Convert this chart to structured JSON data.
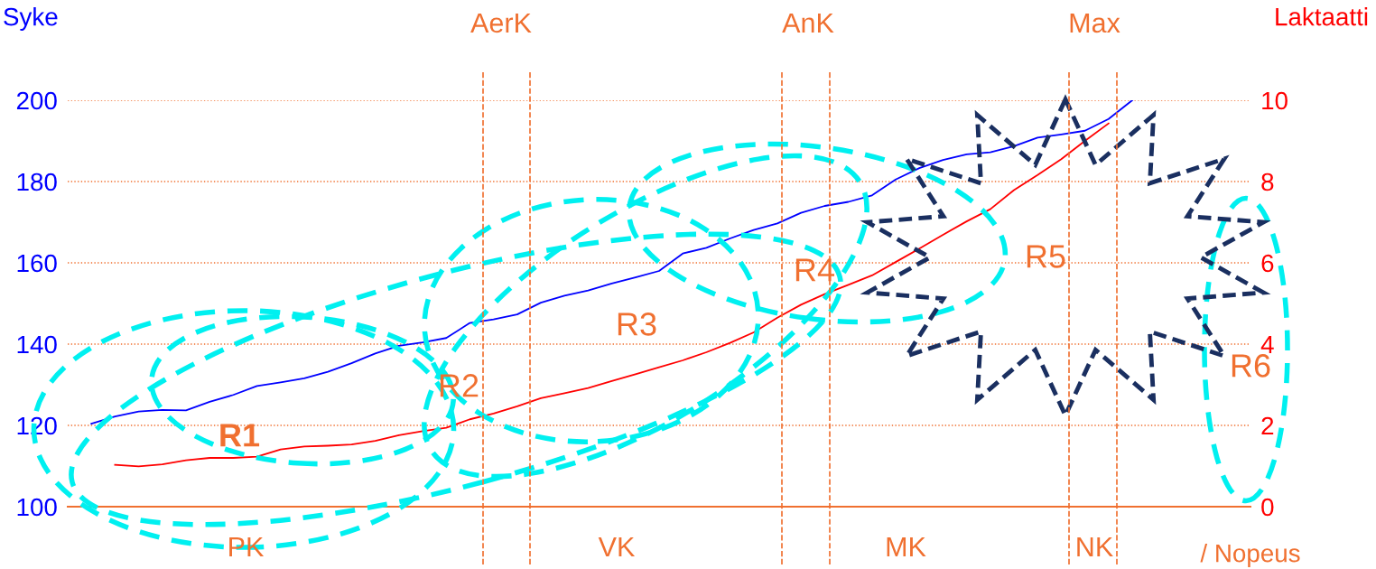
{
  "chart_data": {
    "type": "line",
    "ylabel": "Syke",
    "y2label": "Laktaatti",
    "xlabel": "/ Nopeus",
    "categories": [
      null,
      null,
      null,
      null,
      null,
      null,
      null,
      null,
      null,
      null,
      null,
      null,
      null,
      null,
      null,
      null,
      null,
      null,
      null,
      null,
      null,
      null,
      null,
      null,
      null,
      null,
      null,
      null,
      null,
      null,
      null,
      null,
      null,
      null,
      null,
      null,
      null,
      null,
      null,
      null,
      null,
      null,
      null,
      null,
      null,
      null,
      null,
      null,
      null,
      null,
      null
    ],
    "ylim": [
      100,
      200
    ],
    "yticks": [
      100,
      120,
      140,
      160,
      180,
      200
    ],
    "y2lim": [
      0,
      10
    ],
    "y2ticks": [
      0,
      2,
      4,
      6,
      8,
      10
    ],
    "grid": "y",
    "marker": "none",
    "line_style": "solid",
    "series": [
      {
        "color": "#0000ff",
        "values": [
          null,
          120.4,
          122.2,
          123.4,
          123.8,
          123.7,
          125.8,
          127.5,
          129.7,
          130.6,
          131.6,
          133.2,
          135.3,
          137.7,
          139.6,
          140.4,
          141.5,
          145.2,
          146.1,
          147.3,
          150.2,
          151.9,
          153.2,
          154.9,
          156.4,
          158.0,
          162.3,
          163.7,
          166.0,
          168.1,
          169.7,
          172.3,
          174.0,
          175.0,
          176.6,
          180.5,
          183.3,
          185.3,
          186.7,
          187.2,
          188.7,
          190.8,
          191.6,
          192.5,
          195.4,
          200,
          null,
          null,
          null,
          null,
          null
        ]
      },
      {
        "color": "#ff0000",
        "axis": "y2",
        "values": [
          null,
          null,
          1.03,
          0.99,
          1.04,
          1.14,
          1.2,
          1.2,
          1.23,
          1.41,
          1.48,
          1.5,
          1.53,
          1.62,
          1.76,
          1.86,
          1.94,
          2.15,
          2.29,
          2.47,
          2.67,
          2.79,
          2.92,
          3.09,
          3.26,
          3.43,
          3.6,
          3.8,
          4.03,
          4.29,
          4.65,
          4.97,
          5.23,
          5.46,
          5.69,
          6.02,
          6.35,
          6.69,
          7.02,
          7.32,
          7.79,
          8.16,
          8.55,
          9.0,
          9.43,
          null,
          null,
          null,
          null,
          null,
          null
        ]
      }
    ],
    "annotations": [
      "AerK",
      "AnK",
      "Max",
      "PK",
      "VK",
      "MK",
      "NK",
      "R1",
      "R2",
      "R3",
      "R4",
      "R5",
      "R6"
    ]
  }
}
